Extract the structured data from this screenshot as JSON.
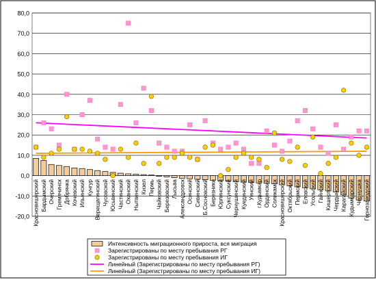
{
  "chart_data": {
    "type": "bar",
    "ylim": [
      -20,
      80
    ],
    "yticks": [
      "80,0",
      "70,0",
      "60,0",
      "50,0",
      "40,0",
      "30,0",
      "20,0",
      "10,0",
      "0,0",
      "-10,0",
      "-20,0"
    ],
    "grid": true,
    "legend_position": "bottom",
    "categories": [
      "Красновишерский",
      "Бардымский",
      "Очерский",
      "Гремячинск",
      "Добрянка",
      "Кочевский",
      "Ильинский",
      "Кунгур",
      "Верещагинский",
      "Чусовской",
      "Юсьвинский",
      "Частинский",
      "Оханский",
      "Нытвенский",
      "Кизел",
      "Пермь",
      "Чайковский",
      "Березовский",
      "Лысьва",
      "Александровск",
      "Осинский",
      "Сивинский",
      "Б.Сосновский",
      "Березники",
      "Юрлинский",
      "Суксунский",
      "Чернушинский",
      "Куединский",
      "Уинский",
      "г.Кудымкар",
      "Ординский",
      "Соликамск",
      "Красновишерский",
      "Октябрьский",
      "Пермский",
      "Еловский",
      "Усольский",
      "Гайнский",
      "Кишертский",
      "Чердынский",
      "Карагайский",
      "Кудымкарский",
      "Чернушка",
      "Горнозаводский"
    ],
    "series": [
      {
        "name": "Интенсивность миграционного прироста, вся миграция",
        "kind": "bar",
        "color": "#F4CB9B",
        "values": [
          8.5,
          7.5,
          5.5,
          5.0,
          4.5,
          3.8,
          3.5,
          3.0,
          2.5,
          2.0,
          1.6,
          1.2,
          0.9,
          0.7,
          0.5,
          0.3,
          -0.3,
          -0.6,
          -1.0,
          -1.3,
          -1.5,
          -1.8,
          -2.0,
          -2.3,
          -2.5,
          -2.7,
          -3.0,
          -3.2,
          -3.4,
          -3.6,
          -3.8,
          -4.0,
          -4.5,
          -5.0,
          -5.5,
          -6.0,
          -6.5,
          -7.0,
          -7.5,
          -8.0,
          -9.5,
          -11.0,
          -12.0,
          -12.5
        ]
      },
      {
        "name": "Зарегистрированы по месту пребывания РГ",
        "kind": "scatter",
        "color": "#FF99CC",
        "values": [
          14,
          26,
          23,
          15,
          40,
          13,
          30,
          37,
          18,
          14,
          13,
          35,
          75,
          26,
          43,
          32,
          16,
          14,
          12,
          12,
          25,
          8,
          27,
          16,
          13,
          14,
          16,
          13,
          6,
          6,
          22,
          15,
          12,
          17,
          27,
          32,
          23,
          14,
          11,
          25,
          13,
          19,
          22,
          22
        ]
      },
      {
        "name": "Зарегистрированы по месту пребывания ИГ",
        "kind": "scatter",
        "color": "#FFCC00",
        "values": [
          14,
          9,
          11,
          13,
          29,
          13,
          13,
          12,
          11,
          8,
          0,
          13,
          9,
          16,
          6,
          39,
          6,
          9,
          9,
          11,
          9,
          8,
          14,
          15,
          0,
          3,
          9,
          11,
          9,
          8,
          4,
          21,
          8,
          7,
          14,
          5,
          19,
          1,
          6,
          9,
          42,
          16,
          10,
          14
        ]
      }
    ],
    "trendlines": [
      {
        "name": "Линейный (Зарегистрированы по месту пребывания РГ)",
        "color": "#FF00FF",
        "start": 26,
        "end": 18.5
      },
      {
        "name": "Линейный (Зарегистрированы по месту пребывания ИГ)",
        "color": "#FF9900",
        "start": 11,
        "end": 12
      }
    ]
  }
}
